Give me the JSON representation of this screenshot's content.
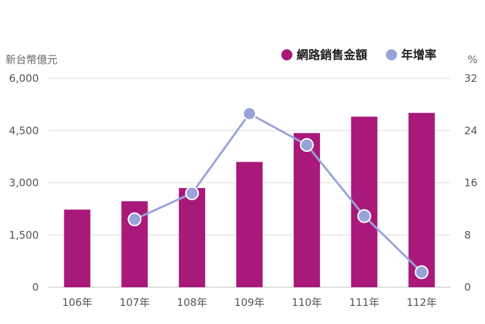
{
  "chart_data": {
    "type": "bar",
    "categories": [
      "106年",
      "107年",
      "108年",
      "109年",
      "110年",
      "111年",
      "112年"
    ],
    "series": [
      {
        "name": "網路銷售金額",
        "type": "bar",
        "axis": "left",
        "color": "#A8197A",
        "values": [
          2230,
          2470,
          2850,
          3600,
          4430,
          4900,
          5010
        ]
      },
      {
        "name": "年增率",
        "type": "line",
        "axis": "right",
        "color": "#98A3D9",
        "values": [
          null,
          10.4,
          14.4,
          26.6,
          21.8,
          10.9,
          2.3
        ]
      }
    ],
    "left_axis": {
      "label": "新台幣億元",
      "ylim": [
        0,
        6000
      ],
      "ticks": [
        0,
        1500,
        3000,
        4500,
        6000
      ],
      "tick_labels": [
        "0",
        "1,500",
        "3,000",
        "4,500",
        "6,000"
      ]
    },
    "right_axis": {
      "label": "%",
      "ylim": [
        0,
        32
      ],
      "ticks": [
        0,
        8,
        16,
        24,
        32
      ],
      "tick_labels": [
        "0",
        "8",
        "16",
        "24",
        "32"
      ]
    },
    "grid": true,
    "legend": "top-right"
  }
}
